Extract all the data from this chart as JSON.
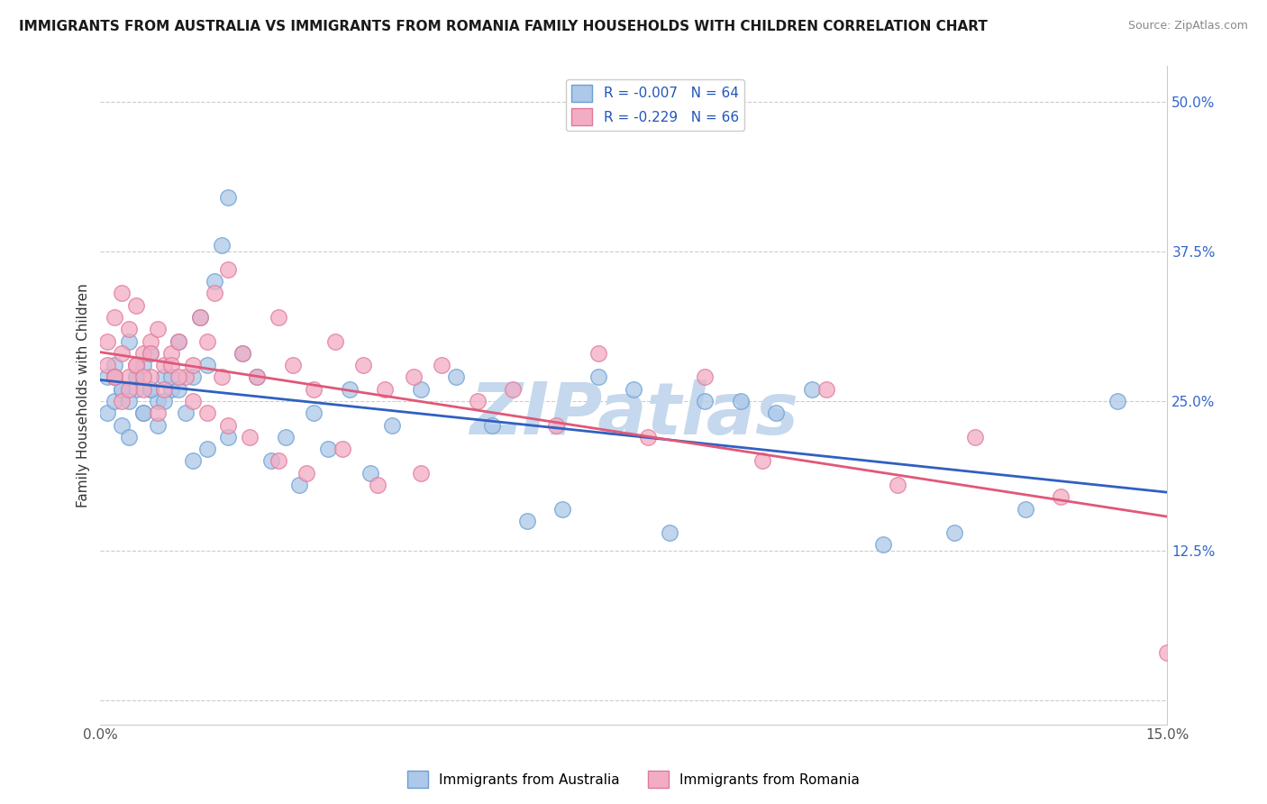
{
  "title": "IMMIGRANTS FROM AUSTRALIA VS IMMIGRANTS FROM ROMANIA FAMILY HOUSEHOLDS WITH CHILDREN CORRELATION CHART",
  "source": "Source: ZipAtlas.com",
  "ylabel": "Family Households with Children",
  "xlim": [
    0.0,
    0.15
  ],
  "ylim": [
    -0.02,
    0.53
  ],
  "xticks": [
    0.0,
    0.03,
    0.06,
    0.09,
    0.12,
    0.15
  ],
  "xticklabels": [
    "0.0%",
    "",
    "",
    "",
    "",
    "15.0%"
  ],
  "yticks": [
    0.0,
    0.125,
    0.25,
    0.375,
    0.5
  ],
  "yticklabels": [
    "",
    "12.5%",
    "25.0%",
    "37.5%",
    "50.0%"
  ],
  "australia_fill": "#adc8e8",
  "australia_edge": "#6a9fd4",
  "romania_fill": "#f2adc4",
  "romania_edge": "#e07898",
  "australia_line_color": "#3060c0",
  "romania_line_color": "#e05878",
  "R_australia": -0.007,
  "N_australia": 64,
  "R_romania": -0.229,
  "N_romania": 66,
  "watermark": "ZIPatlas",
  "watermark_color": "#c5d8ed",
  "grid_color": "#cccccc",
  "title_fontsize": 11,
  "source_fontsize": 9,
  "tick_fontsize": 11,
  "legend_fontsize": 11,
  "ylabel_fontsize": 11,
  "scatter_size": 160,
  "scatter_alpha": 0.75,
  "line_width": 2.0,
  "aus_x": [
    0.001,
    0.001,
    0.002,
    0.002,
    0.003,
    0.003,
    0.004,
    0.004,
    0.005,
    0.005,
    0.006,
    0.006,
    0.007,
    0.007,
    0.008,
    0.009,
    0.01,
    0.011,
    0.012,
    0.013,
    0.014,
    0.015,
    0.016,
    0.017,
    0.018,
    0.02,
    0.022,
    0.024,
    0.026,
    0.028,
    0.03,
    0.032,
    0.035,
    0.038,
    0.041,
    0.045,
    0.05,
    0.055,
    0.06,
    0.065,
    0.07,
    0.075,
    0.08,
    0.085,
    0.09,
    0.095,
    0.1,
    0.11,
    0.12,
    0.13,
    0.002,
    0.003,
    0.004,
    0.005,
    0.006,
    0.007,
    0.008,
    0.009,
    0.01,
    0.011,
    0.013,
    0.015,
    0.018,
    0.143
  ],
  "aus_y": [
    0.27,
    0.24,
    0.25,
    0.28,
    0.26,
    0.23,
    0.3,
    0.22,
    0.27,
    0.26,
    0.28,
    0.24,
    0.26,
    0.29,
    0.25,
    0.27,
    0.26,
    0.3,
    0.24,
    0.27,
    0.32,
    0.28,
    0.35,
    0.38,
    0.42,
    0.29,
    0.27,
    0.2,
    0.22,
    0.18,
    0.24,
    0.21,
    0.26,
    0.19,
    0.23,
    0.26,
    0.27,
    0.23,
    0.15,
    0.16,
    0.27,
    0.26,
    0.14,
    0.25,
    0.25,
    0.24,
    0.26,
    0.13,
    0.14,
    0.16,
    0.27,
    0.26,
    0.25,
    0.27,
    0.24,
    0.26,
    0.23,
    0.25,
    0.27,
    0.26,
    0.2,
    0.21,
    0.22,
    0.25
  ],
  "rom_x": [
    0.001,
    0.001,
    0.002,
    0.002,
    0.003,
    0.003,
    0.004,
    0.004,
    0.005,
    0.005,
    0.006,
    0.006,
    0.007,
    0.007,
    0.008,
    0.009,
    0.01,
    0.011,
    0.012,
    0.013,
    0.014,
    0.015,
    0.016,
    0.017,
    0.018,
    0.02,
    0.022,
    0.025,
    0.027,
    0.03,
    0.033,
    0.037,
    0.04,
    0.044,
    0.048,
    0.053,
    0.058,
    0.064,
    0.07,
    0.077,
    0.085,
    0.093,
    0.102,
    0.112,
    0.123,
    0.135,
    0.15,
    0.002,
    0.003,
    0.004,
    0.005,
    0.006,
    0.007,
    0.008,
    0.009,
    0.01,
    0.011,
    0.013,
    0.015,
    0.018,
    0.021,
    0.025,
    0.029,
    0.034,
    0.039,
    0.045
  ],
  "rom_y": [
    0.28,
    0.3,
    0.27,
    0.32,
    0.29,
    0.34,
    0.27,
    0.31,
    0.28,
    0.33,
    0.26,
    0.29,
    0.3,
    0.27,
    0.31,
    0.28,
    0.29,
    0.3,
    0.27,
    0.28,
    0.32,
    0.3,
    0.34,
    0.27,
    0.36,
    0.29,
    0.27,
    0.32,
    0.28,
    0.26,
    0.3,
    0.28,
    0.26,
    0.27,
    0.28,
    0.25,
    0.26,
    0.23,
    0.29,
    0.22,
    0.27,
    0.2,
    0.26,
    0.18,
    0.22,
    0.17,
    0.04,
    0.27,
    0.25,
    0.26,
    0.28,
    0.27,
    0.29,
    0.24,
    0.26,
    0.28,
    0.27,
    0.25,
    0.24,
    0.23,
    0.22,
    0.2,
    0.19,
    0.21,
    0.18,
    0.19
  ]
}
